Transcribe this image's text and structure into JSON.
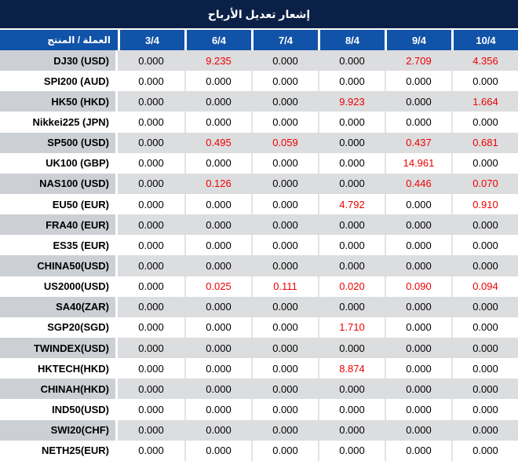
{
  "title": "إشعار تعديل الأرباح",
  "table": {
    "product_column_header": "العملة / المنتج",
    "date_columns": [
      "3/4",
      "6/4",
      "7/4",
      "8/4",
      "9/4",
      "10/4"
    ],
    "rows": [
      {
        "product": "DJ30 (USD)",
        "values": [
          "0.000",
          "9.235",
          "0.000",
          "0.000",
          "2.709",
          "4.356"
        ]
      },
      {
        "product": "SPI200 (AUD)",
        "values": [
          "0.000",
          "0.000",
          "0.000",
          "0.000",
          "0.000",
          "0.000"
        ]
      },
      {
        "product": "HK50 (HKD)",
        "values": [
          "0.000",
          "0.000",
          "0.000",
          "9.923",
          "0.000",
          "1.664"
        ]
      },
      {
        "product": "Nikkei225 (JPN)",
        "values": [
          "0.000",
          "0.000",
          "0.000",
          "0.000",
          "0.000",
          "0.000"
        ]
      },
      {
        "product": "SP500 (USD)",
        "values": [
          "0.000",
          "0.495",
          "0.059",
          "0.000",
          "0.437",
          "0.681"
        ]
      },
      {
        "product": "UK100 (GBP)",
        "values": [
          "0.000",
          "0.000",
          "0.000",
          "0.000",
          "14.961",
          "0.000"
        ]
      },
      {
        "product": "NAS100 (USD)",
        "values": [
          "0.000",
          "0.126",
          "0.000",
          "0.000",
          "0.446",
          "0.070"
        ]
      },
      {
        "product": "EU50 (EUR)",
        "values": [
          "0.000",
          "0.000",
          "0.000",
          "4.792",
          "0.000",
          "0.910"
        ]
      },
      {
        "product": "FRA40 (EUR)",
        "values": [
          "0.000",
          "0.000",
          "0.000",
          "0.000",
          "0.000",
          "0.000"
        ]
      },
      {
        "product": "ES35 (EUR)",
        "values": [
          "0.000",
          "0.000",
          "0.000",
          "0.000",
          "0.000",
          "0.000"
        ]
      },
      {
        "product": "CHINA50(USD)",
        "values": [
          "0.000",
          "0.000",
          "0.000",
          "0.000",
          "0.000",
          "0.000"
        ]
      },
      {
        "product": "US2000(USD)",
        "values": [
          "0.000",
          "0.025",
          "0.111",
          "0.020",
          "0.090",
          "0.094"
        ]
      },
      {
        "product": "SA40(ZAR)",
        "values": [
          "0.000",
          "0.000",
          "0.000",
          "0.000",
          "0.000",
          "0.000"
        ]
      },
      {
        "product": "SGP20(SGD)",
        "values": [
          "0.000",
          "0.000",
          "0.000",
          "1.710",
          "0.000",
          "0.000"
        ]
      },
      {
        "product": "TWINDEX(USD)",
        "values": [
          "0.000",
          "0.000",
          "0.000",
          "0.000",
          "0.000",
          "0.000"
        ]
      },
      {
        "product": "HKTECH(HKD)",
        "values": [
          "0.000",
          "0.000",
          "0.000",
          "8.874",
          "0.000",
          "0.000"
        ]
      },
      {
        "product": "CHINAH(HKD)",
        "values": [
          "0.000",
          "0.000",
          "0.000",
          "0.000",
          "0.000",
          "0.000"
        ]
      },
      {
        "product": "IND50(USD)",
        "values": [
          "0.000",
          "0.000",
          "0.000",
          "0.000",
          "0.000",
          "0.000"
        ]
      },
      {
        "product": "SWI20(CHF)",
        "values": [
          "0.000",
          "0.000",
          "0.000",
          "0.000",
          "0.000",
          "0.000"
        ]
      },
      {
        "product": "NETH25(EUR)",
        "values": [
          "0.000",
          "0.000",
          "0.000",
          "0.000",
          "0.000",
          "0.000"
        ]
      }
    ]
  },
  "colors": {
    "title_bar_bg": "#0b2047",
    "header_bg": "#1153a8",
    "header_text": "#ffffff",
    "row_gray_bg": "#dcdddf",
    "row_white_bg": "#ffffff",
    "label_gray_bg": "#ccd0d5",
    "zero_value_text": "#000000",
    "nonzero_value_text": "#ee0000"
  }
}
